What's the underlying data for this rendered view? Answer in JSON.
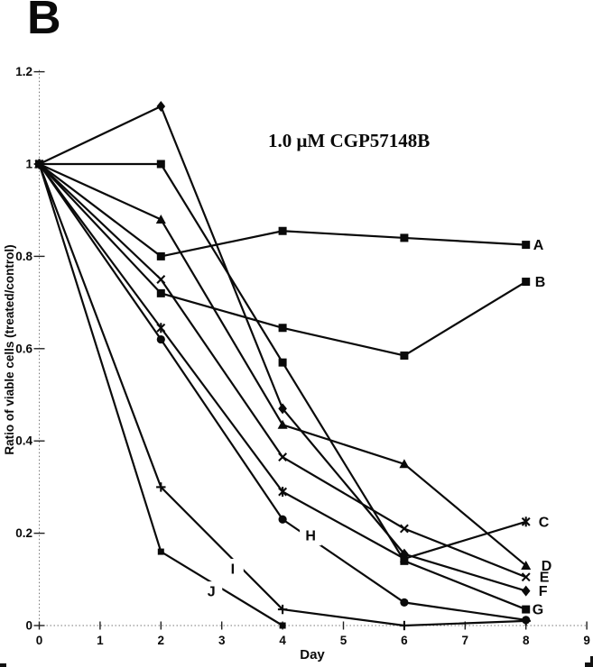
{
  "panel_label": "B",
  "annotation": {
    "text": "1.0 μM CGP57148B"
  },
  "chart_data": {
    "type": "line",
    "title": "",
    "xlabel": "Day",
    "ylabel": "Ratio of viable cells (treated/control)",
    "xlim": [
      0,
      9
    ],
    "ylim": [
      0,
      1.2
    ],
    "grid": false,
    "legend_position": "end-of-line-labels",
    "x_ticks": [
      "0",
      "1",
      "2",
      "3",
      "4",
      "5",
      "6",
      "7",
      "8",
      "9"
    ],
    "y_ticks": [
      "1.2",
      "1",
      "0.8",
      "0.6",
      "0.4",
      "0.2",
      "0"
    ],
    "days": [
      0,
      2,
      4,
      6,
      8
    ],
    "series": [
      {
        "name": "A",
        "marker": "square",
        "values": [
          1.0,
          0.8,
          0.855,
          0.84,
          0.825
        ],
        "label_dx": 8
      },
      {
        "name": "B",
        "marker": "square",
        "values": [
          1.0,
          0.72,
          0.645,
          0.585,
          0.745
        ],
        "label_dx": 10
      },
      {
        "name": "C",
        "marker": "star",
        "values": [
          1.0,
          0.645,
          0.29,
          0.145,
          0.225
        ],
        "label_dx": 14
      },
      {
        "name": "D",
        "marker": "triangle",
        "values": [
          1.0,
          0.88,
          0.435,
          0.35,
          0.13
        ],
        "label_dx": 17
      },
      {
        "name": "E",
        "marker": "x",
        "values": [
          1.0,
          0.75,
          0.365,
          0.21,
          0.105
        ],
        "label_dx": 15
      },
      {
        "name": "F",
        "marker": "diamond",
        "values": [
          1.0,
          1.125,
          0.47,
          0.155,
          0.075
        ],
        "label_dx": 14
      },
      {
        "name": "G",
        "marker": "square",
        "values": [
          1.0,
          1.0,
          0.57,
          0.14,
          0.035
        ],
        "label_dx": 7
      },
      {
        "name": "H",
        "marker": "circle",
        "values": [
          1.0,
          0.62,
          0.23,
          0.05,
          0.012
        ],
        "label_at": {
          "x": 4.46,
          "y": 0.195
        }
      },
      {
        "name": "I",
        "marker": "plus",
        "values": [
          1.0,
          0.3,
          0.035,
          0.0,
          0.01
        ],
        "label_at": {
          "x": 3.18,
          "y": 0.123
        }
      },
      {
        "name": "J",
        "marker": "square-small",
        "values": [
          1.0,
          0.16,
          0.0,
          null,
          null
        ],
        "label_at": {
          "x": 2.83,
          "y": 0.074
        }
      }
    ]
  }
}
